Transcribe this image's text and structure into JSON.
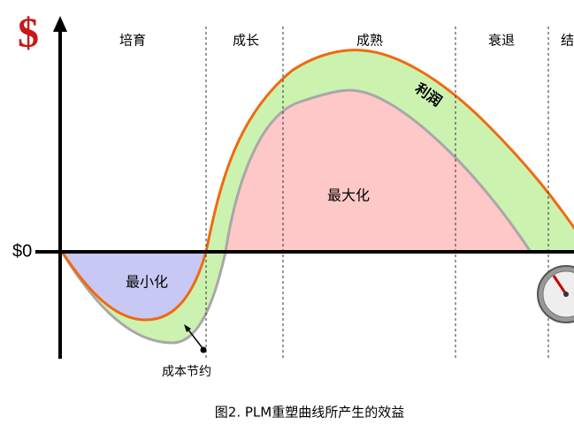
{
  "header": {
    "currency": "$",
    "zero": "$0"
  },
  "stages": [
    "培育",
    "成长",
    "成熟",
    "衰退",
    "结"
  ],
  "labels": {
    "profit": "利润",
    "maximize": "最大化",
    "minimize": "最小化",
    "cost_saving": "成本节约"
  },
  "caption": "图2. PLM重塑曲线所产生的效益"
}
